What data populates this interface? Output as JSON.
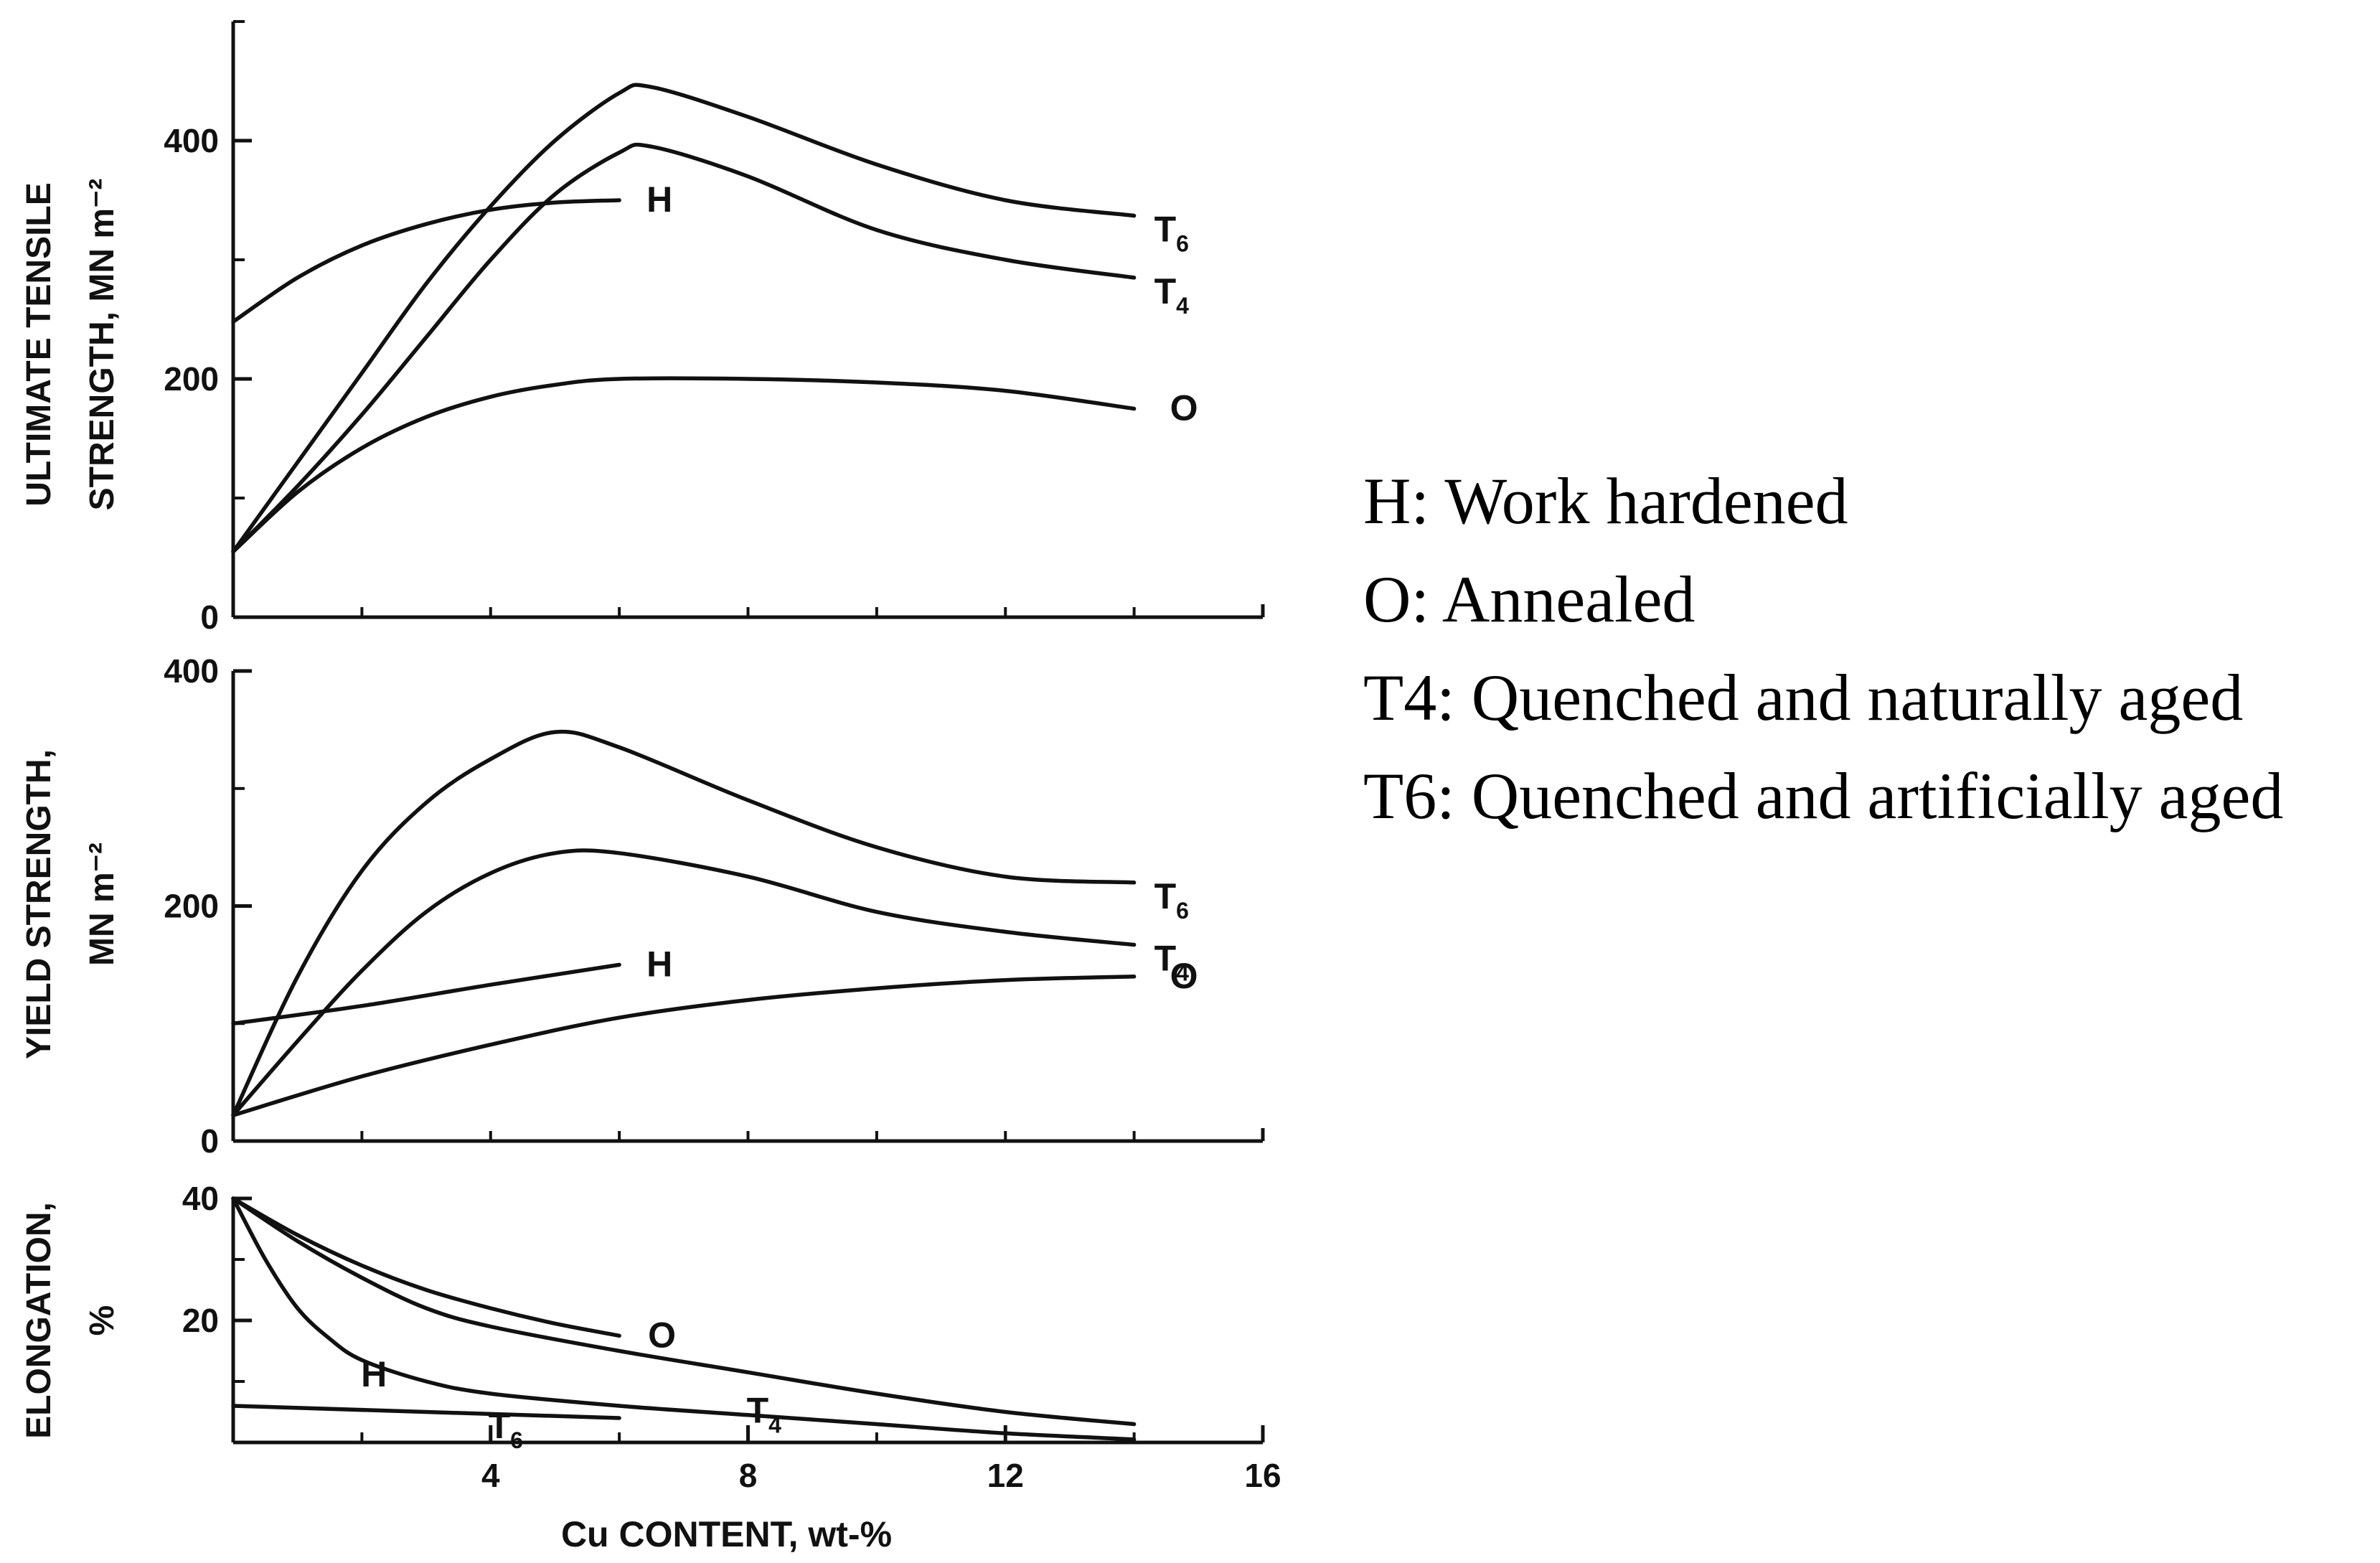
{
  "chart_data": [
    {
      "type": "line",
      "ylabel_lines": [
        "ULTIMATE TENSILE",
        "STRENGTH, MN m⁻²"
      ],
      "xlim": [
        0,
        16
      ],
      "ylim": [
        0,
        500
      ],
      "yticks": [
        0,
        200,
        400
      ],
      "ytick_labels": [
        "0",
        "200",
        "400"
      ],
      "series": [
        {
          "name": "H",
          "label": "H",
          "sub": "",
          "x": [
            0,
            1,
            2,
            3,
            4,
            5,
            6
          ],
          "y": [
            248,
            285,
            312,
            330,
            342,
            348,
            350
          ]
        },
        {
          "name": "O",
          "label": "O",
          "sub": "",
          "x": [
            0,
            1,
            2,
            3,
            4,
            5,
            6,
            8,
            10,
            12,
            14
          ],
          "y": [
            55,
            105,
            142,
            168,
            185,
            195,
            200,
            200,
            197,
            190,
            175
          ]
        },
        {
          "name": "T4",
          "label": "T",
          "sub": "4",
          "x": [
            0,
            1,
            2,
            3,
            4,
            5,
            6,
            6.5,
            8,
            10,
            12,
            14
          ],
          "y": [
            55,
            110,
            170,
            235,
            300,
            355,
            390,
            395,
            370,
            325,
            300,
            285
          ]
        },
        {
          "name": "T6",
          "label": "T",
          "sub": "6",
          "x": [
            0,
            1,
            2,
            3,
            4,
            5,
            6,
            6.5,
            8,
            10,
            12,
            14
          ],
          "y": [
            55,
            130,
            205,
            280,
            345,
            400,
            440,
            445,
            420,
            380,
            350,
            337
          ]
        }
      ]
    },
    {
      "type": "line",
      "ylabel_lines": [
        "YIELD STRENGTH,",
        "MN m⁻²"
      ],
      "xlim": [
        0,
        16
      ],
      "ylim": [
        0,
        400
      ],
      "yticks": [
        0,
        200,
        400
      ],
      "ytick_labels": [
        "0",
        "200",
        "400"
      ],
      "series": [
        {
          "name": "H",
          "label": "H",
          "sub": "",
          "x": [
            0,
            2,
            4,
            6
          ],
          "y": [
            100,
            115,
            133,
            150
          ]
        },
        {
          "name": "O",
          "label": "O",
          "sub": "",
          "x": [
            0,
            2,
            4,
            6,
            8,
            10,
            12,
            14
          ],
          "y": [
            22,
            55,
            82,
            105,
            120,
            130,
            137,
            140
          ]
        },
        {
          "name": "T4",
          "label": "T",
          "sub": "4",
          "x": [
            0,
            1,
            2,
            3,
            4,
            5,
            6,
            8,
            10,
            12,
            14
          ],
          "y": [
            22,
            85,
            145,
            195,
            228,
            245,
            245,
            225,
            195,
            178,
            167
          ]
        },
        {
          "name": "T6",
          "label": "T",
          "sub": "6",
          "x": [
            0,
            1,
            2,
            3,
            4,
            5,
            6,
            8,
            10,
            12,
            14
          ],
          "y": [
            22,
            140,
            230,
            288,
            325,
            348,
            335,
            290,
            250,
            225,
            220
          ]
        }
      ]
    },
    {
      "type": "line",
      "ylabel_lines": [
        "ELONGATION,",
        "%"
      ],
      "xlabel": "Cu CONTENT, wt-%",
      "xlim": [
        0,
        16
      ],
      "ylim": [
        0,
        40
      ],
      "yticks": [
        20,
        40
      ],
      "ytick_labels": [
        "20",
        "40"
      ],
      "xticks": [
        4,
        8,
        12,
        16
      ],
      "xtick_labels": [
        "4",
        "8",
        "12",
        "16"
      ],
      "series": [
        {
          "name": "H",
          "label": "H",
          "sub": "",
          "x": [
            0,
            6
          ],
          "y": [
            6,
            4
          ]
        },
        {
          "name": "O",
          "label": "O",
          "sub": "",
          "x": [
            0,
            1,
            2,
            3,
            4,
            5,
            6
          ],
          "y": [
            40,
            34,
            29,
            25,
            22,
            19.5,
            17.5
          ]
        },
        {
          "name": "T4",
          "label": "T",
          "sub": "4",
          "x": [
            0,
            1,
            2,
            3,
            4,
            6,
            8,
            10,
            12,
            14
          ],
          "y": [
            40,
            33,
            27,
            22,
            19,
            15,
            11.5,
            8,
            5,
            3
          ]
        },
        {
          "name": "T6",
          "label": "T",
          "sub": "6",
          "x": [
            0,
            0.5,
            1,
            1.5,
            2,
            3,
            4,
            6,
            8,
            10,
            12,
            14
          ],
          "y": [
            40,
            30,
            22,
            17,
            13.5,
            10,
            8,
            6,
            4.5,
            3,
            1.5,
            0.5
          ]
        }
      ]
    }
  ],
  "legend": {
    "items": [
      "H: Work hardened",
      "O: Annealed",
      "T4: Quenched and naturally aged",
      "T6: Quenched and artificially aged"
    ]
  },
  "colors": {
    "line": "#111111",
    "background": "#ffffff"
  }
}
